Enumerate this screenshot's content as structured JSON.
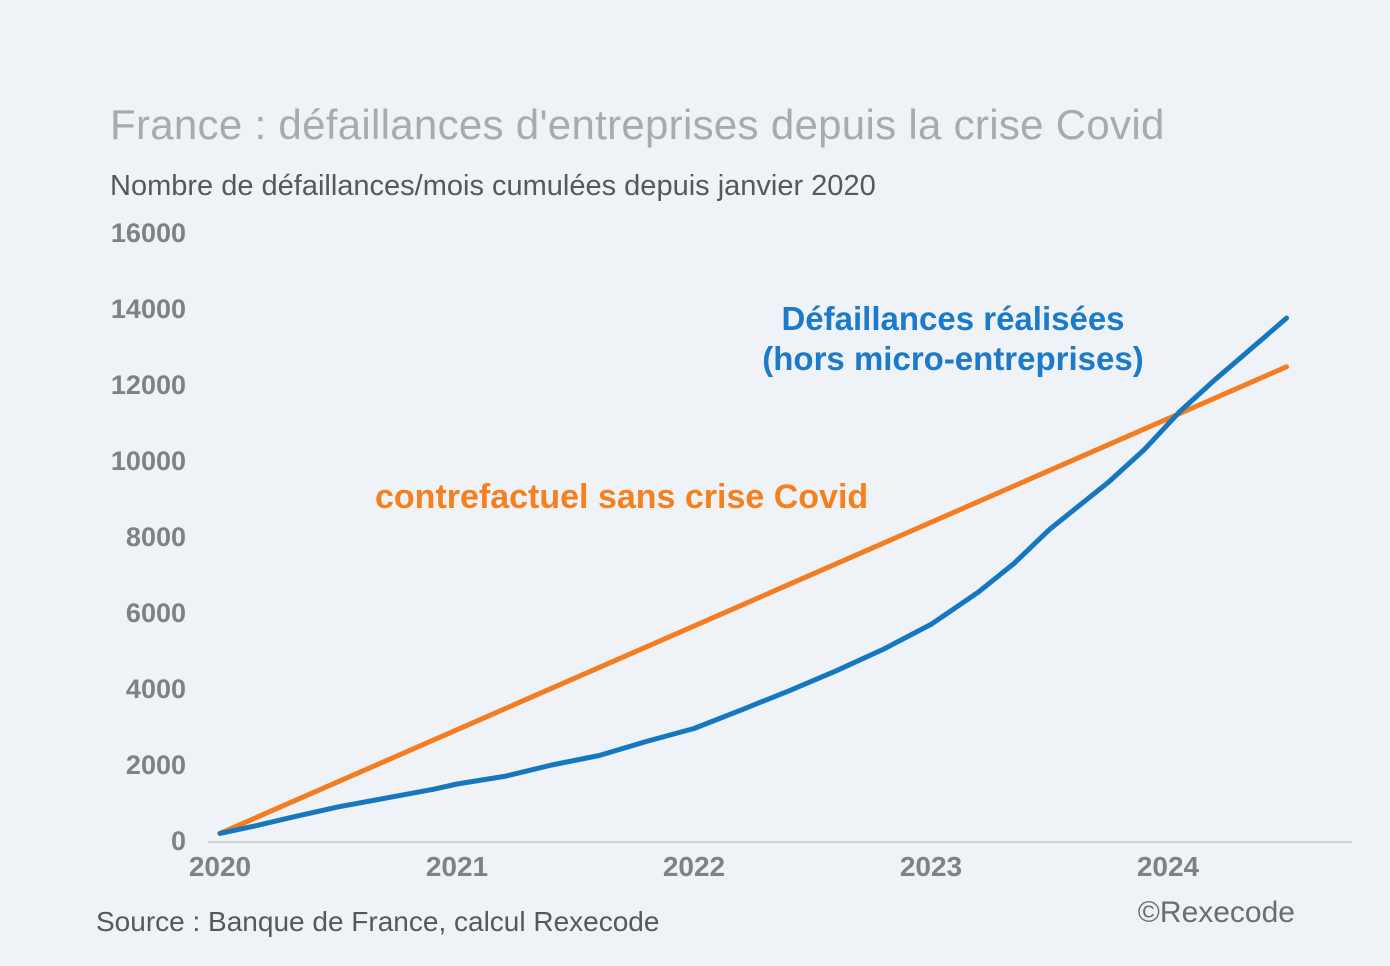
{
  "page": {
    "background": "#eff2f6"
  },
  "header": {
    "title": "France : défaillances d'entreprises depuis la crise Covid",
    "subtitle": "Nombre de défaillances/mois cumulées depuis janvier 2020"
  },
  "footer": {
    "source": "Source : Banque de France, calcul Rexecode",
    "copyright": "©Rexecode"
  },
  "chart_data": {
    "type": "line",
    "title": "France : défaillances d'entreprises depuis la crise Covid",
    "subtitle": "Nombre de défaillances/mois cumulées depuis janvier 2020",
    "xlabel": "",
    "ylabel": "Nombre de défaillances/mois cumulées depuis janvier 2020",
    "x_ticks": [
      2020,
      2021,
      2022,
      2023,
      2024
    ],
    "y_ticks": [
      0,
      2000,
      4000,
      6000,
      8000,
      10000,
      12000,
      14000,
      16000
    ],
    "xlim": [
      2020,
      2024.83
    ],
    "ylim": [
      0,
      16000
    ],
    "grid": false,
    "legend_position": "inline-annotations",
    "axis_color": "#c6c8ca",
    "series": [
      {
        "name": "Défaillances réalisées (hors micro-entreprises)",
        "label_line1": "Défaillances réalisées",
        "label_line2": "(hors micro-entreprises)",
        "color": "#1477c0",
        "x": [
          2020.0,
          2020.15,
          2020.3,
          2020.5,
          2020.7,
          2020.9,
          2021.0,
          2021.2,
          2021.4,
          2021.6,
          2021.8,
          2022.0,
          2022.2,
          2022.4,
          2022.6,
          2022.8,
          2023.0,
          2023.2,
          2023.35,
          2023.5,
          2023.6,
          2023.75,
          2023.9,
          2024.05,
          2024.2,
          2024.35,
          2024.5
        ],
        "y": [
          200,
          400,
          620,
          900,
          1130,
          1360,
          1500,
          1700,
          2000,
          2250,
          2620,
          2960,
          3450,
          3950,
          4480,
          5050,
          5700,
          6550,
          7300,
          8200,
          8700,
          9450,
          10300,
          11300,
          12150,
          12950,
          13760
        ]
      },
      {
        "name": "contrefactuel sans crise Covid",
        "label": "contrefactuel sans crise Covid",
        "color": "#f47d21",
        "x": [
          2020.0,
          2024.5
        ],
        "y": [
          200,
          12480
        ]
      }
    ]
  }
}
